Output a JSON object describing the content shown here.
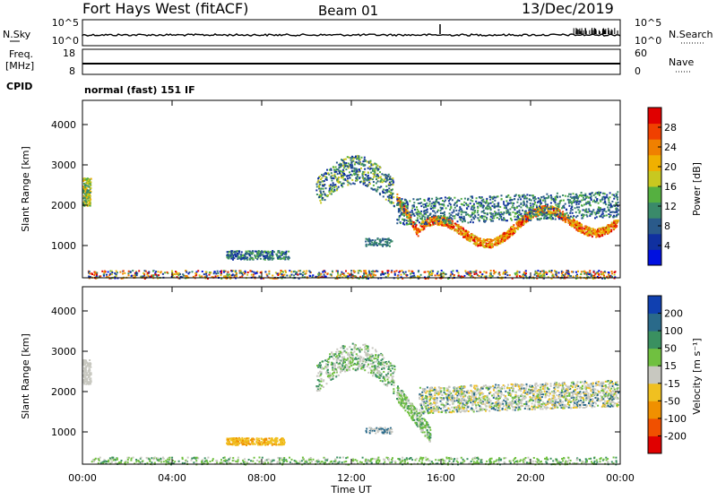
{
  "header": {
    "station": "Fort Hays West (fitACF)",
    "beam": "Beam 01",
    "date": "13/Dec/2019"
  },
  "top_panel": {
    "left_label": "N.Sky",
    "left_ticks": [
      "10^5",
      "10^0"
    ],
    "right_ticks": [
      "10^5",
      "10^0"
    ],
    "right_label": "N.Search"
  },
  "freq_panel": {
    "left_label_1": "Freq.",
    "left_label_2": "[MHz]",
    "left_ticks": [
      "18",
      "8"
    ],
    "right_ticks": [
      "60",
      "0"
    ],
    "right_label": "Nave"
  },
  "cpid": {
    "label": "CPID",
    "text": "normal (fast) 151 IF"
  },
  "chart_data": [
    {
      "type": "heatmap",
      "name": "power",
      "ylabel": "Slant Range [km]",
      "yticks": [
        "4000",
        "3000",
        "2000",
        "1000"
      ],
      "ylim": [
        200,
        4600
      ],
      "colorbar_label": "Power [dB]",
      "colorbar_ticks": [
        "28",
        "24",
        "20",
        "16",
        "12",
        "8",
        "4"
      ],
      "colorbar_colors": [
        "#0010e0",
        "#1030a0",
        "#2a5a8a",
        "#3a8a6a",
        "#55b040",
        "#c8c820",
        "#f0b000",
        "#f08000",
        "#f04000",
        "#e00000"
      ]
    },
    {
      "type": "heatmap",
      "name": "velocity",
      "ylabel": "Slant Range [km]",
      "yticks": [
        "4000",
        "3000",
        "2000",
        "1000"
      ],
      "ylim": [
        200,
        4600
      ],
      "colorbar_label": "Velocity [m s⁻¹]",
      "colorbar_ticks": [
        "200",
        "100",
        "50",
        "15",
        "-15",
        "-50",
        "-100",
        "-200"
      ],
      "colorbar_colors": [
        "#1040b0",
        "#2a6a8a",
        "#3a9060",
        "#70c040",
        "#c8c8c0",
        "#f0c020",
        "#f09000",
        "#f05000",
        "#e00000"
      ],
      "xticks": [
        "00:00",
        "04:00",
        "08:00",
        "12:00",
        "16:00",
        "20:00",
        "00:00"
      ],
      "xlabel": "Time UT"
    }
  ]
}
